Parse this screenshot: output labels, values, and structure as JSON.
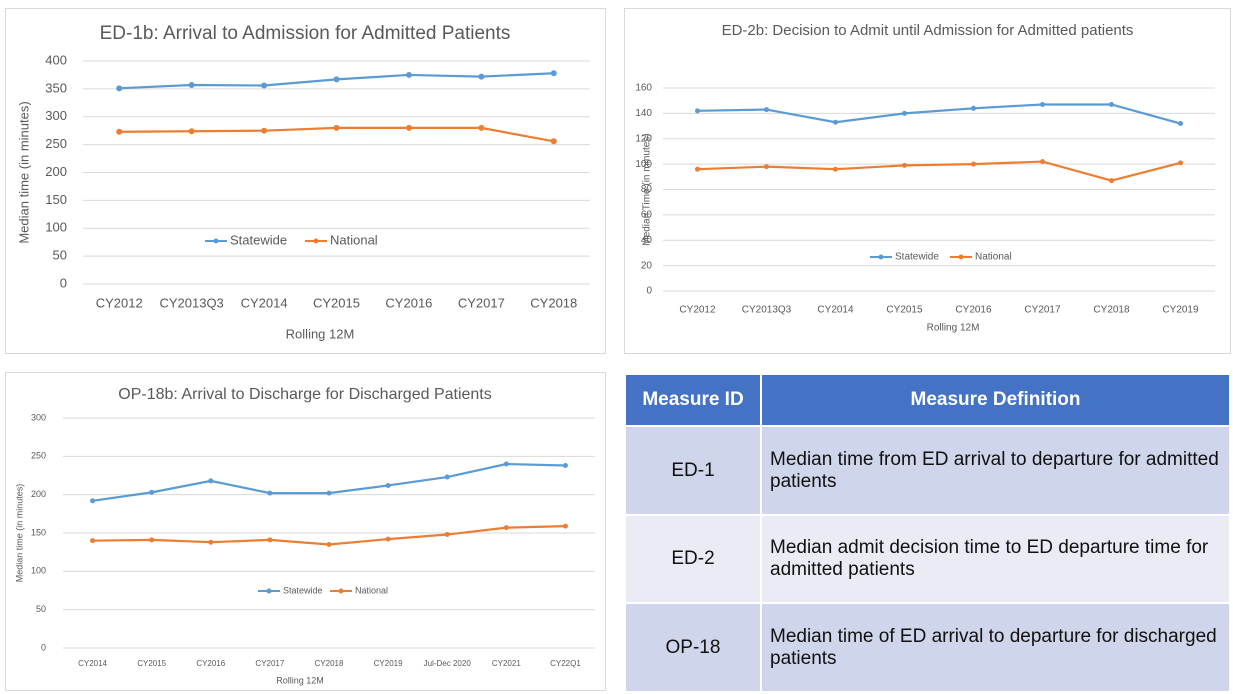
{
  "chart_data": [
    {
      "type": "line",
      "title": "ED-1b: Arrival to Admission for Admitted Patients",
      "x_label": "Rolling 12M",
      "y_label": "Median time (in minutes)",
      "categories": [
        "CY2012",
        "CY2013Q3",
        "CY2014",
        "CY2015",
        "CY2016",
        "CY2017",
        "CY2018"
      ],
      "series": [
        {
          "name": "Statewide",
          "color": "#5b9bd5",
          "values": [
            351,
            357,
            356,
            367,
            375,
            372,
            378
          ]
        },
        {
          "name": "National",
          "color": "#ed7d31",
          "values": [
            273,
            274,
            275,
            280,
            280,
            280,
            256
          ]
        }
      ],
      "ylim": [
        0,
        400
      ],
      "yticks": [
        0,
        50,
        100,
        150,
        200,
        250,
        300,
        350,
        400
      ],
      "grid": true,
      "legend": "bottom"
    },
    {
      "type": "line",
      "title": "ED-2b: Decision to Admit until Admission for Admitted patients",
      "x_label": "Rolling 12M",
      "y_label": "Median Time (in minutes)",
      "categories": [
        "CY2012",
        "CY2013Q3",
        "CY2014",
        "CY2015",
        "CY2016",
        "CY2017",
        "CY2018",
        "CY2019"
      ],
      "series": [
        {
          "name": "Statewide",
          "color": "#5b9bd5",
          "values": [
            142,
            143,
            133,
            140,
            144,
            147,
            147,
            132
          ]
        },
        {
          "name": "National",
          "color": "#ed7d31",
          "values": [
            96,
            98,
            96,
            99,
            100,
            102,
            87,
            101
          ]
        }
      ],
      "ylim": [
        0,
        160
      ],
      "yticks": [
        0,
        20,
        40,
        60,
        80,
        100,
        120,
        140,
        160
      ],
      "grid": true,
      "legend": "bottom"
    },
    {
      "type": "line",
      "title": "OP-18b: Arrival to Discharge for Discharged Patients",
      "x_label": "Rolling 12M",
      "y_label": "Median time (in minutes)",
      "categories": [
        "CY2014",
        "CY2015",
        "CY2016",
        "CY2017",
        "CY2018",
        "CY2019",
        "Jul-Dec 2020",
        "CY2021",
        "CY22Q1"
      ],
      "series": [
        {
          "name": "Statewide",
          "color": "#5b9bd5",
          "values": [
            192,
            203,
            218,
            202,
            202,
            212,
            223,
            240,
            238
          ]
        },
        {
          "name": "National",
          "color": "#ed7d31",
          "values": [
            140,
            141,
            138,
            141,
            135,
            142,
            148,
            157,
            159
          ]
        }
      ],
      "ylim": [
        0,
        300
      ],
      "yticks": [
        0,
        50,
        100,
        150,
        200,
        250,
        300
      ],
      "grid": true,
      "legend": "bottom"
    }
  ],
  "table": {
    "header": [
      "Measure ID",
      "Measure Definition"
    ],
    "rows": [
      [
        "ED-1",
        "Median time from ED arrival to departure for admitted patients"
      ],
      [
        "ED-2",
        "Median admit decision time to  ED departure time for admitted patients"
      ],
      [
        "OP-18",
        "Median time of ED arrival to departure for discharged patients"
      ]
    ]
  }
}
